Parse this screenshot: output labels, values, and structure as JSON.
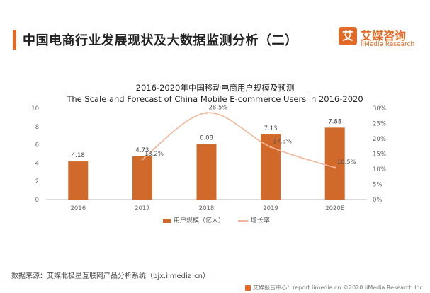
{
  "header": {
    "title": "中国电商行业发展现状及大数据监测分析（二）"
  },
  "logo": {
    "mark": "艾",
    "name_cn": "艾媒咨询",
    "name_en": "iiMedia Research"
  },
  "colors": {
    "accent": "#e06a26",
    "bar": "#d0692a",
    "line": "#f1b699",
    "axis_text": "#666666"
  },
  "chart_data": {
    "type": "bar",
    "title_cn": "2016-2020年中国移动电商用户规模及预测",
    "title_en": "The Scale and Forecast of China Mobile E-commerce  Users in 2016-2020",
    "categories": [
      "2016",
      "2017",
      "2018",
      "2019",
      "2020E"
    ],
    "series": [
      {
        "name": "用户规模（亿人）",
        "type": "bar",
        "axis": "left",
        "values": [
          4.18,
          4.73,
          6.08,
          7.13,
          7.88
        ],
        "labels": [
          "4.18",
          "4.73",
          "6.08",
          "7.13",
          "7.88"
        ]
      },
      {
        "name": "增长率",
        "type": "line",
        "axis": "right",
        "values": [
          null,
          13.2,
          28.5,
          17.3,
          10.5
        ],
        "labels": [
          "",
          "13.2%",
          "28.5%",
          "17.3%",
          "10.5%"
        ]
      }
    ],
    "ylim_left": [
      0,
      10
    ],
    "yticks_left": [
      "0",
      "2",
      "4",
      "6",
      "8",
      "10"
    ],
    "ylim_right": [
      0,
      30
    ],
    "yticks_right": [
      "0%",
      "5%",
      "10%",
      "15%",
      "20%",
      "25%",
      "30%"
    ],
    "legend_position": "bottom",
    "grid": false
  },
  "source": "数据来源：艾媒北极星互联网产品分析系统（bjx.iimedia.cn）",
  "footer": "艾媒报告中心：report.iimedia.cn  ©2020  iiMedia Research Inc"
}
